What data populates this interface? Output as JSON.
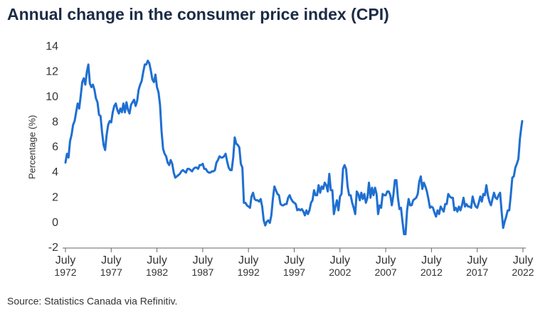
{
  "chart_data": {
    "type": "line",
    "title": "Annual change in the consumer price index (CPI)",
    "y_label": "Percentage (%)",
    "source": "Source: Statistics Canada via Refinitiv.",
    "color": "#1f6fd1",
    "grid": false,
    "ylim": [
      -2,
      14
    ],
    "yticks": [
      -2,
      0,
      2,
      4,
      6,
      8,
      10,
      12,
      14
    ],
    "xlim": [
      "1972-07",
      "2022-07"
    ],
    "xticks": [
      {
        "value": "1972-07",
        "label": "July 1972"
      },
      {
        "value": "1977-07",
        "label": "July 1977"
      },
      {
        "value": "1982-07",
        "label": "July 1982"
      },
      {
        "value": "1987-07",
        "label": "July 1987"
      },
      {
        "value": "1992-07",
        "label": "July 1992"
      },
      {
        "value": "1997-07",
        "label": "July 1997"
      },
      {
        "value": "2002-07",
        "label": "July 2002"
      },
      {
        "value": "2007-07",
        "label": "July 2007"
      },
      {
        "value": "2012-07",
        "label": "July 2012"
      },
      {
        "value": "2017-07",
        "label": "July 2017"
      },
      {
        "value": "2022-07",
        "label": "July 2022"
      }
    ],
    "x": [
      "1972-07",
      "1972-09",
      "1972-11",
      "1973-01",
      "1973-03",
      "1973-05",
      "1973-07",
      "1973-09",
      "1973-11",
      "1974-01",
      "1974-03",
      "1974-05",
      "1974-07",
      "1974-09",
      "1974-11",
      "1975-01",
      "1975-03",
      "1975-05",
      "1975-07",
      "1975-09",
      "1975-11",
      "1976-01",
      "1976-03",
      "1976-05",
      "1976-07",
      "1976-09",
      "1976-11",
      "1977-01",
      "1977-03",
      "1977-05",
      "1977-07",
      "1977-09",
      "1977-11",
      "1978-01",
      "1978-03",
      "1978-05",
      "1978-07",
      "1978-09",
      "1978-11",
      "1979-01",
      "1979-03",
      "1979-05",
      "1979-07",
      "1979-09",
      "1979-11",
      "1980-01",
      "1980-03",
      "1980-05",
      "1980-07",
      "1980-09",
      "1980-11",
      "1981-01",
      "1981-03",
      "1981-05",
      "1981-07",
      "1981-09",
      "1981-11",
      "1982-01",
      "1982-03",
      "1982-05",
      "1982-07",
      "1982-09",
      "1982-11",
      "1983-01",
      "1983-03",
      "1983-05",
      "1983-07",
      "1983-09",
      "1983-11",
      "1984-01",
      "1984-03",
      "1984-05",
      "1984-07",
      "1984-09",
      "1984-11",
      "1985-01",
      "1985-03",
      "1985-05",
      "1985-07",
      "1985-09",
      "1985-11",
      "1986-01",
      "1986-03",
      "1986-05",
      "1986-07",
      "1986-09",
      "1986-11",
      "1987-01",
      "1987-03",
      "1987-05",
      "1987-07",
      "1987-09",
      "1987-11",
      "1988-01",
      "1988-03",
      "1988-05",
      "1988-07",
      "1988-09",
      "1988-11",
      "1989-01",
      "1989-03",
      "1989-05",
      "1989-07",
      "1989-09",
      "1989-11",
      "1990-01",
      "1990-03",
      "1990-05",
      "1990-07",
      "1990-09",
      "1990-11",
      "1991-01",
      "1991-03",
      "1991-05",
      "1991-07",
      "1991-09",
      "1991-11",
      "1992-01",
      "1992-03",
      "1992-05",
      "1992-07",
      "1992-09",
      "1992-11",
      "1993-01",
      "1993-03",
      "1993-05",
      "1993-07",
      "1993-09",
      "1993-11",
      "1994-01",
      "1994-03",
      "1994-05",
      "1994-07",
      "1994-09",
      "1994-11",
      "1995-01",
      "1995-03",
      "1995-05",
      "1995-07",
      "1995-09",
      "1995-11",
      "1996-01",
      "1996-03",
      "1996-05",
      "1996-07",
      "1996-09",
      "1996-11",
      "1997-01",
      "1997-03",
      "1997-05",
      "1997-07",
      "1997-09",
      "1997-11",
      "1998-01",
      "1998-03",
      "1998-05",
      "1998-07",
      "1998-09",
      "1998-11",
      "1999-01",
      "1999-03",
      "1999-05",
      "1999-07",
      "1999-09",
      "1999-11",
      "2000-01",
      "2000-03",
      "2000-05",
      "2000-07",
      "2000-09",
      "2000-11",
      "2001-01",
      "2001-03",
      "2001-05",
      "2001-07",
      "2001-09",
      "2001-11",
      "2002-01",
      "2002-03",
      "2002-05",
      "2002-07",
      "2002-09",
      "2002-11",
      "2003-01",
      "2003-03",
      "2003-05",
      "2003-07",
      "2003-09",
      "2003-11",
      "2004-01",
      "2004-03",
      "2004-05",
      "2004-07",
      "2004-09",
      "2004-11",
      "2005-01",
      "2005-03",
      "2005-05",
      "2005-07",
      "2005-09",
      "2005-11",
      "2006-01",
      "2006-03",
      "2006-05",
      "2006-07",
      "2006-09",
      "2006-11",
      "2007-01",
      "2007-03",
      "2007-05",
      "2007-07",
      "2007-09",
      "2007-11",
      "2008-01",
      "2008-03",
      "2008-05",
      "2008-07",
      "2008-09",
      "2008-11",
      "2009-01",
      "2009-03",
      "2009-05",
      "2009-07",
      "2009-09",
      "2009-11",
      "2010-01",
      "2010-03",
      "2010-05",
      "2010-07",
      "2010-09",
      "2010-11",
      "2011-01",
      "2011-03",
      "2011-05",
      "2011-07",
      "2011-09",
      "2011-11",
      "2012-01",
      "2012-03",
      "2012-05",
      "2012-07",
      "2012-09",
      "2012-11",
      "2013-01",
      "2013-03",
      "2013-05",
      "2013-07",
      "2013-09",
      "2013-11",
      "2014-01",
      "2014-03",
      "2014-05",
      "2014-07",
      "2014-09",
      "2014-11",
      "2015-01",
      "2015-03",
      "2015-05",
      "2015-07",
      "2015-09",
      "2015-11",
      "2016-01",
      "2016-03",
      "2016-05",
      "2016-07",
      "2016-09",
      "2016-11",
      "2017-01",
      "2017-03",
      "2017-05",
      "2017-07",
      "2017-09",
      "2017-11",
      "2018-01",
      "2018-03",
      "2018-05",
      "2018-07",
      "2018-09",
      "2018-11",
      "2019-01",
      "2019-03",
      "2019-05",
      "2019-07",
      "2019-09",
      "2019-11",
      "2020-01",
      "2020-03",
      "2020-05",
      "2020-07",
      "2020-09",
      "2020-11",
      "2021-01",
      "2021-03",
      "2021-05",
      "2021-07",
      "2021-09",
      "2021-11",
      "2022-01",
      "2022-03",
      "2022-05",
      "2022-06"
    ],
    "values": [
      4.8,
      5.5,
      5.2,
      6.5,
      7.0,
      7.8,
      8.1,
      8.8,
      9.5,
      9.1,
      10.1,
      11.2,
      11.5,
      11.0,
      12.0,
      12.6,
      11.1,
      10.8,
      11.0,
      10.6,
      9.9,
      9.6,
      8.6,
      8.5,
      7.2,
      6.2,
      5.8,
      7.0,
      7.8,
      8.1,
      8.0,
      8.8,
      9.3,
      9.5,
      9.0,
      8.7,
      9.1,
      8.8,
      9.5,
      8.8,
      9.6,
      9.0,
      8.7,
      9.4,
      9.6,
      9.8,
      9.3,
      9.7,
      10.6,
      11.0,
      11.3,
      12.0,
      12.6,
      12.6,
      12.9,
      12.7,
      12.1,
      11.4,
      11.2,
      11.8,
      10.8,
      10.4,
      9.4,
      7.3,
      5.9,
      5.5,
      5.3,
      4.8,
      4.6,
      5.0,
      4.7,
      4.0,
      3.6,
      3.7,
      3.8,
      3.9,
      4.1,
      4.2,
      4.1,
      4.0,
      4.3,
      4.3,
      4.2,
      4.1,
      4.3,
      4.4,
      4.4,
      4.3,
      4.6,
      4.6,
      4.7,
      4.3,
      4.3,
      4.1,
      4.0,
      4.0,
      4.1,
      4.1,
      4.2,
      4.8,
      5.0,
      5.3,
      5.2,
      5.2,
      5.3,
      5.5,
      4.9,
      4.4,
      4.2,
      4.2,
      5.2,
      6.8,
      6.3,
      6.2,
      6.0,
      4.7,
      4.4,
      1.6,
      1.6,
      1.4,
      1.3,
      1.2,
      2.1,
      2.4,
      1.9,
      1.8,
      1.8,
      1.7,
      1.9,
      1.3,
      0.2,
      -0.2,
      0.1,
      0.2,
      0.0,
      0.6,
      1.9,
      2.9,
      2.6,
      2.3,
      2.2,
      1.5,
      1.4,
      1.4,
      1.5,
      1.5,
      2.0,
      2.2,
      1.9,
      1.7,
      1.6,
      1.5,
      1.0,
      1.1,
      1.0,
      1.1,
      0.9,
      0.6,
      1.0,
      0.7,
      1.0,
      1.6,
      1.8,
      2.6,
      2.2,
      2.2,
      3.0,
      2.4,
      2.9,
      2.7,
      3.2,
      3.0,
      2.5,
      3.9,
      2.6,
      2.6,
      0.7,
      1.3,
      1.8,
      1.0,
      2.1,
      2.3,
      4.3,
      4.6,
      4.3,
      2.9,
      2.2,
      2.2,
      1.6,
      1.2,
      0.7,
      2.5,
      2.3,
      1.8,
      2.4,
      1.9,
      2.3,
      1.6,
      2.0,
      3.2,
      2.0,
      2.8,
      2.2,
      2.8,
      2.3,
      0.7,
      1.4,
      1.2,
      2.3,
      2.2,
      2.2,
      2.5,
      2.5,
      2.2,
      1.4,
      2.2,
      3.4,
      3.4,
      2.0,
      1.1,
      1.2,
      0.1,
      -0.9,
      -0.9,
      1.0,
      1.9,
      1.4,
      1.4,
      1.8,
      1.9,
      2.0,
      2.3,
      3.3,
      3.7,
      2.7,
      3.2,
      2.9,
      2.5,
      1.9,
      1.2,
      1.3,
      1.2,
      0.8,
      0.5,
      1.0,
      0.7,
      1.3,
      1.1,
      0.9,
      1.5,
      1.5,
      2.3,
      2.1,
      2.0,
      2.0,
      1.0,
      1.2,
      0.9,
      1.3,
      1.0,
      1.4,
      2.0,
      1.3,
      1.5,
      1.3,
      1.3,
      1.2,
      2.1,
      1.6,
      1.3,
      1.2,
      1.6,
      2.1,
      1.7,
      2.3,
      2.2,
      3.0,
      2.2,
      1.7,
      1.4,
      1.9,
      2.4,
      2.0,
      1.9,
      2.2,
      2.4,
      0.9,
      -0.4,
      0.1,
      0.5,
      1.0,
      1.0,
      2.2,
      3.6,
      3.7,
      4.4,
      4.7,
      5.1,
      6.7,
      7.7,
      8.1
    ]
  }
}
